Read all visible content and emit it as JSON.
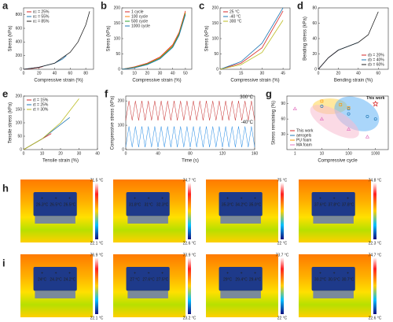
{
  "chart_data": [
    {
      "type": "line",
      "panel": "a",
      "xlabel": "Compressive  strain (%)",
      "ylabel": "Stress (kPa)",
      "xlim": [
        0,
        90
      ],
      "ylim": [
        0,
        900
      ],
      "xticks": [
        0,
        20,
        40,
        60,
        80
      ],
      "yticks": [
        0,
        200,
        400,
        600,
        800
      ],
      "legend": "upper left",
      "series": [
        {
          "name": "εc = 25%",
          "color": "#d62728",
          "x": [
            0,
            10,
            20,
            25
          ],
          "values": [
            0,
            10,
            25,
            40
          ]
        },
        {
          "name": "εc = 55%",
          "color": "#1f77b4",
          "x": [
            0,
            20,
            40,
            50,
            55
          ],
          "values": [
            0,
            30,
            90,
            150,
            200
          ]
        },
        {
          "name": "εc = 85%",
          "color": "#222222",
          "x": [
            0,
            20,
            40,
            60,
            70,
            80,
            85
          ],
          "values": [
            0,
            30,
            90,
            250,
            400,
            650,
            850
          ]
        }
      ]
    },
    {
      "type": "line",
      "panel": "b",
      "xlabel": "Compressive strain (%)",
      "ylabel": "Stress (kPa)",
      "xlim": [
        0,
        55
      ],
      "ylim": [
        0,
        200
      ],
      "xticks": [
        0,
        10,
        20,
        30,
        40,
        50
      ],
      "yticks": [
        0,
        50,
        100,
        150,
        200
      ],
      "legend": "upper left",
      "series": [
        {
          "name": "1 cycle",
          "color": "#d62728",
          "x": [
            0,
            10,
            20,
            30,
            40,
            45,
            50
          ],
          "values": [
            0,
            8,
            20,
            40,
            80,
            120,
            190
          ]
        },
        {
          "name": "100 cycle",
          "color": "#ff7f0e",
          "x": [
            0,
            10,
            20,
            30,
            40,
            45,
            50
          ],
          "values": [
            0,
            7,
            18,
            38,
            77,
            117,
            186
          ]
        },
        {
          "name": "500 cycle",
          "color": "#2ca02c",
          "x": [
            0,
            10,
            20,
            30,
            40,
            45,
            50
          ],
          "values": [
            0,
            6,
            17,
            36,
            74,
            114,
            182
          ]
        },
        {
          "name": "1000 cycle",
          "color": "#1f77b4",
          "x": [
            0,
            10,
            20,
            30,
            40,
            45,
            50
          ],
          "values": [
            0,
            5,
            15,
            34,
            71,
            110,
            178
          ]
        }
      ]
    },
    {
      "type": "line",
      "panel": "c",
      "xlabel": "Compressive strain (%)",
      "ylabel": "Stress (kPa)",
      "xlim": [
        0,
        50
      ],
      "ylim": [
        0,
        200
      ],
      "xticks": [
        0,
        15,
        30,
        45
      ],
      "yticks": [
        0,
        50,
        100,
        150,
        200
      ],
      "legend": "upper left",
      "series": [
        {
          "name": "25 °C",
          "color": "#d62728",
          "x": [
            0,
            15,
            30,
            45
          ],
          "values": [
            0,
            20,
            70,
            190
          ]
        },
        {
          "name": "-40 °C",
          "color": "#1f77b4",
          "x": [
            0,
            15,
            30,
            45
          ],
          "values": [
            0,
            25,
            85,
            200
          ]
        },
        {
          "name": "300 °C",
          "color": "#bcbd22",
          "x": [
            0,
            15,
            30,
            45
          ],
          "values": [
            0,
            15,
            55,
            160
          ]
        }
      ]
    },
    {
      "type": "line",
      "panel": "d",
      "xlabel": "Bending strain (%)",
      "ylabel": "Bending stress (kPa)",
      "xlim": [
        0,
        70
      ],
      "ylim": [
        0,
        80
      ],
      "xticks": [
        0,
        20,
        40,
        60
      ],
      "yticks": [
        0,
        20,
        40,
        60,
        80
      ],
      "legend": "lower right",
      "series": [
        {
          "name": "εb = 20%",
          "color": "#d62728",
          "x": [
            0,
            10,
            20
          ],
          "values": [
            0,
            15,
            25
          ]
        },
        {
          "name": "εb = 40%",
          "color": "#1f77b4",
          "x": [
            0,
            10,
            20,
            30,
            40
          ],
          "values": [
            0,
            15,
            25,
            30,
            35
          ]
        },
        {
          "name": "εb = 60%",
          "color": "#222222",
          "x": [
            0,
            10,
            20,
            40,
            50,
            60
          ],
          "values": [
            0,
            15,
            25,
            35,
            45,
            75
          ]
        }
      ]
    },
    {
      "type": "line",
      "panel": "e",
      "xlabel": "Tensile strain (%)",
      "ylabel": "Tensile stress (kPa)",
      "xlim": [
        0,
        40
      ],
      "ylim": [
        0,
        200
      ],
      "xticks": [
        0,
        10,
        20,
        30,
        40
      ],
      "yticks": [
        0,
        50,
        100,
        150,
        200
      ],
      "legend": "upper left",
      "series": [
        {
          "name": "εt = 15%",
          "color": "#d62728",
          "x": [
            0,
            15
          ],
          "values": [
            0,
            60
          ]
        },
        {
          "name": "εt = 25%",
          "color": "#1f77b4",
          "x": [
            0,
            10,
            25
          ],
          "values": [
            0,
            40,
            120
          ]
        },
        {
          "name": "εt = 30%",
          "color": "#bcbd22",
          "x": [
            0,
            10,
            20,
            30
          ],
          "values": [
            0,
            40,
            100,
            190
          ]
        }
      ]
    },
    {
      "type": "line",
      "panel": "f",
      "xlabel": "Time (s)",
      "ylabel": "Compressive stress (kPa)",
      "xlim": [
        0,
        160
      ],
      "ylim": [
        0,
        220
      ],
      "xticks": [
        0,
        40,
        80,
        120,
        160
      ],
      "yticks": [
        0,
        100,
        200
      ],
      "legend": "line-end",
      "series": [
        {
          "name": "300°C",
          "color": "#c62828",
          "x": [
            0,
            4,
            8,
            12,
            16,
            20,
            24,
            28,
            32,
            36,
            40,
            44,
            48,
            52,
            56,
            60,
            64,
            68,
            72,
            76,
            80,
            84,
            88,
            92,
            96,
            100,
            104,
            108,
            112,
            116,
            120,
            124,
            128,
            132,
            136,
            140,
            144,
            148,
            152,
            156,
            160
          ],
          "values": [
            120,
            200,
            120,
            200,
            120,
            200,
            120,
            200,
            120,
            200,
            120,
            200,
            120,
            200,
            120,
            200,
            120,
            200,
            120,
            200,
            120,
            200,
            120,
            200,
            120,
            200,
            120,
            200,
            120,
            200,
            120,
            200,
            120,
            200,
            120,
            200,
            120,
            200,
            120,
            200,
            120
          ]
        },
        {
          "name": "-40°C",
          "color": "#1e88e5",
          "x": [
            0,
            4,
            8,
            12,
            16,
            20,
            24,
            28,
            32,
            36,
            40,
            44,
            48,
            52,
            56,
            60,
            64,
            68,
            72,
            76,
            80,
            84,
            88,
            92,
            96,
            100,
            104,
            108,
            112,
            116,
            120,
            124,
            128,
            132,
            136,
            140,
            144,
            148,
            152,
            156,
            160
          ],
          "values": [
            10,
            95,
            10,
            95,
            10,
            95,
            10,
            95,
            10,
            95,
            10,
            95,
            10,
            95,
            10,
            95,
            10,
            95,
            10,
            95,
            10,
            95,
            10,
            95,
            10,
            95,
            10,
            95,
            10,
            95,
            10,
            95,
            10,
            95,
            10,
            95,
            10,
            95,
            10,
            95,
            10
          ]
        }
      ]
    },
    {
      "type": "scatter",
      "panel": "g",
      "xlabel": "Compressive cycle",
      "ylabel": "Stress remaining (%)",
      "xlim": [
        0.5,
        3000
      ],
      "xlog": true,
      "ylim": [
        0,
        105
      ],
      "xticks": [
        1,
        10,
        100,
        1000
      ],
      "yticks": [
        30,
        60,
        90
      ],
      "legend": "lower left",
      "annotation": "This work",
      "series": [
        {
          "name": "This work",
          "color": "#d62728",
          "marker": "star",
          "x": [
            1000
          ],
          "values": [
            90
          ]
        },
        {
          "name": "aerogels",
          "color": "#1f77b4",
          "marker": "circle",
          "x": [
            10,
            100,
            100,
            500,
            1000
          ],
          "values": [
            85,
            80,
            70,
            65,
            60
          ]
        },
        {
          "name": "PU foam",
          "color": "#ff9900",
          "marker": "square",
          "x": [
            10,
            50,
            100
          ],
          "values": [
            95,
            88,
            82
          ]
        },
        {
          "name": "MA foam",
          "color": "#e377c2",
          "marker": "triangle",
          "x": [
            1,
            10,
            100,
            500
          ],
          "values": [
            80,
            60,
            40,
            25
          ]
        }
      ]
    }
  ],
  "thermal_rows": [
    {
      "panel": "h",
      "images": [
        {
          "max": "71.5 °C",
          "min": "22.1 °C",
          "spots": [
            "26.3°C",
            "26.5°C",
            "26.5°C"
          ]
        },
        {
          "max": "74.7 °C",
          "min": "22.6 °C",
          "spots": [
            "31.8°C",
            "31°C",
            "32.3°C"
          ]
        },
        {
          "max": "75 °C",
          "min": "22 °C",
          "spots": [
            "35.3°C",
            "34.2°C",
            "35.0°C"
          ]
        },
        {
          "max": "74.8 °C",
          "min": "22.3 °C",
          "spots": [
            "37.6°C",
            "37.8°C",
            "37.8°C"
          ]
        }
      ]
    },
    {
      "panel": "i",
      "images": [
        {
          "max": "76.9 °C",
          "min": "22.1 °C",
          "spots": [
            "24°C",
            "24.3°C",
            "24.2°C"
          ]
        },
        {
          "max": "73.9 °C",
          "min": "23.2 °C",
          "spots": [
            "27 °C",
            "27.6°C",
            "27.5°C"
          ]
        },
        {
          "max": "73.7 °C",
          "min": "22 °C",
          "spots": [
            "29°C",
            "29.4°C",
            "29.4°C"
          ]
        },
        {
          "max": "74.7 °C",
          "min": "22.6 °C",
          "spots": [
            "30.2°C",
            "30.5°C",
            "30.7°C"
          ]
        }
      ]
    }
  ]
}
